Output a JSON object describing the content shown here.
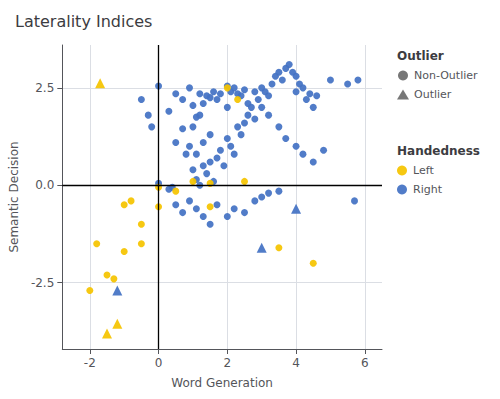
{
  "chart_data": {
    "type": "scatter",
    "title": "Laterality Indices",
    "xlabel": "Word Generation",
    "ylabel": "Semantic Decision",
    "xlim": [
      -2.8,
      6.5
    ],
    "ylim": [
      -4.2,
      3.6
    ],
    "xticks": [
      -2,
      0,
      2,
      4,
      6
    ],
    "yticks": [
      -2.5,
      {
        "value": 0,
        "label": "0.0"
      },
      2.5
    ],
    "grid": true,
    "legend": "right",
    "vlines": [
      0
    ],
    "hlines": [
      0
    ],
    "legends": [
      {
        "title": "Outlier",
        "color": "#555555",
        "entries": [
          {
            "name": "Non-Outlier",
            "marker": "circle"
          },
          {
            "name": "Outlier",
            "marker": "triangle"
          }
        ]
      },
      {
        "title": "Handedness",
        "marker": "circle",
        "entries": [
          {
            "name": "Left",
            "color": "#F5C400"
          },
          {
            "name": "Right",
            "color": "#4472C4"
          }
        ]
      }
    ],
    "series": [
      {
        "name": "Right",
        "outlier": "Non-Outlier",
        "color": "#4472C4",
        "marker": "circle",
        "values": [
          [
            -0.5,
            2.2
          ],
          [
            -0.3,
            1.8
          ],
          [
            -0.2,
            1.5
          ],
          [
            0.0,
            2.55
          ],
          [
            0.0,
            0.05
          ],
          [
            0.3,
            1.9
          ],
          [
            0.5,
            2.35
          ],
          [
            0.5,
            1.1
          ],
          [
            0.7,
            2.2
          ],
          [
            0.7,
            1.45
          ],
          [
            0.8,
            0.8
          ],
          [
            0.9,
            2.5
          ],
          [
            0.9,
            1.0
          ],
          [
            1.0,
            2.05
          ],
          [
            1.0,
            1.5
          ],
          [
            1.0,
            0.4
          ],
          [
            1.1,
            1.75
          ],
          [
            1.1,
            0.8
          ],
          [
            1.1,
            0.15
          ],
          [
            1.2,
            2.35
          ],
          [
            1.2,
            1.8
          ],
          [
            1.2,
            0.0
          ],
          [
            1.3,
            2.1
          ],
          [
            1.3,
            1.1
          ],
          [
            1.3,
            0.5
          ],
          [
            1.4,
            2.3
          ],
          [
            1.4,
            0.3
          ],
          [
            1.5,
            2.25
          ],
          [
            1.5,
            1.3
          ],
          [
            1.5,
            0.6
          ],
          [
            1.6,
            2.4
          ],
          [
            1.6,
            0.1
          ],
          [
            1.7,
            2.2
          ],
          [
            1.7,
            0.7
          ],
          [
            1.8,
            2.35
          ],
          [
            1.8,
            0.9
          ],
          [
            1.9,
            0.5
          ],
          [
            2.0,
            2.55
          ],
          [
            2.0,
            2.0
          ],
          [
            2.0,
            1.2
          ],
          [
            2.1,
            2.4
          ],
          [
            2.1,
            1.0
          ],
          [
            2.2,
            2.5
          ],
          [
            2.2,
            0.8
          ],
          [
            2.3,
            2.35
          ],
          [
            2.3,
            1.5
          ],
          [
            2.4,
            2.3
          ],
          [
            2.4,
            1.3
          ],
          [
            2.5,
            2.45
          ],
          [
            2.5,
            1.6
          ],
          [
            2.6,
            2.1
          ],
          [
            2.6,
            1.8
          ],
          [
            2.7,
            2.0
          ],
          [
            2.8,
            2.4
          ],
          [
            2.8,
            1.7
          ],
          [
            2.9,
            2.2
          ],
          [
            3.0,
            2.5
          ],
          [
            3.0,
            2.0
          ],
          [
            3.1,
            2.4
          ],
          [
            3.2,
            2.3
          ],
          [
            3.2,
            1.8
          ],
          [
            3.3,
            2.6
          ],
          [
            3.4,
            2.8
          ],
          [
            3.5,
            2.9
          ],
          [
            3.5,
            1.5
          ],
          [
            3.6,
            2.7
          ],
          [
            3.7,
            3.0
          ],
          [
            3.7,
            1.2
          ],
          [
            3.8,
            3.1
          ],
          [
            3.9,
            2.9
          ],
          [
            4.0,
            2.8
          ],
          [
            4.0,
            2.4
          ],
          [
            4.0,
            1.0
          ],
          [
            4.1,
            2.6
          ],
          [
            4.2,
            2.5
          ],
          [
            4.2,
            0.8
          ],
          [
            4.3,
            2.2
          ],
          [
            4.4,
            2.35
          ],
          [
            4.5,
            2.0
          ],
          [
            4.5,
            0.6
          ],
          [
            4.6,
            2.3
          ],
          [
            4.8,
            0.9
          ],
          [
            5.0,
            2.7
          ],
          [
            5.5,
            2.6
          ],
          [
            5.8,
            2.7
          ],
          [
            0.3,
            -0.1
          ],
          [
            0.4,
            -0.05
          ],
          [
            0.5,
            -0.5
          ],
          [
            0.7,
            -0.7
          ],
          [
            0.9,
            -0.4
          ],
          [
            1.1,
            -0.6
          ],
          [
            1.3,
            -0.8
          ],
          [
            1.5,
            -1.0
          ],
          [
            1.7,
            -0.5
          ],
          [
            2.0,
            -0.8
          ],
          [
            2.2,
            -0.6
          ],
          [
            2.5,
            -0.7
          ],
          [
            2.8,
            -0.4
          ],
          [
            3.0,
            -0.3
          ],
          [
            3.2,
            -0.2
          ],
          [
            3.5,
            -0.15
          ],
          [
            5.7,
            -0.4
          ]
        ]
      },
      {
        "name": "Right",
        "outlier": "Outlier",
        "color": "#4472C4",
        "marker": "triangle",
        "values": [
          [
            -1.2,
            -2.7
          ],
          [
            4.0,
            -0.6
          ],
          [
            3.0,
            -1.6
          ]
        ]
      },
      {
        "name": "Left",
        "outlier": "Non-Outlier",
        "color": "#F5C400",
        "marker": "circle",
        "values": [
          [
            -2.0,
            -2.7
          ],
          [
            -1.5,
            -2.3
          ],
          [
            -1.3,
            -2.4
          ],
          [
            -1.0,
            -0.5
          ],
          [
            -0.8,
            -0.4
          ],
          [
            -0.5,
            -1.5
          ],
          [
            -0.5,
            -1.0
          ],
          [
            -1.8,
            -1.5
          ],
          [
            -1.0,
            -1.7
          ],
          [
            0.0,
            -0.05
          ],
          [
            0.5,
            -0.15
          ],
          [
            1.0,
            0.1
          ],
          [
            1.5,
            0.05
          ],
          [
            2.0,
            2.5
          ],
          [
            2.3,
            2.2
          ],
          [
            2.5,
            0.1
          ],
          [
            3.5,
            -1.6
          ],
          [
            4.5,
            -2.0
          ],
          [
            1.5,
            -0.55
          ],
          [
            0.0,
            -0.55
          ]
        ]
      },
      {
        "name": "Left",
        "outlier": "Outlier",
        "color": "#F5C400",
        "marker": "triangle",
        "values": [
          [
            -1.5,
            -3.8
          ],
          [
            -1.2,
            -3.55
          ],
          [
            -1.7,
            2.62
          ]
        ]
      }
    ]
  }
}
